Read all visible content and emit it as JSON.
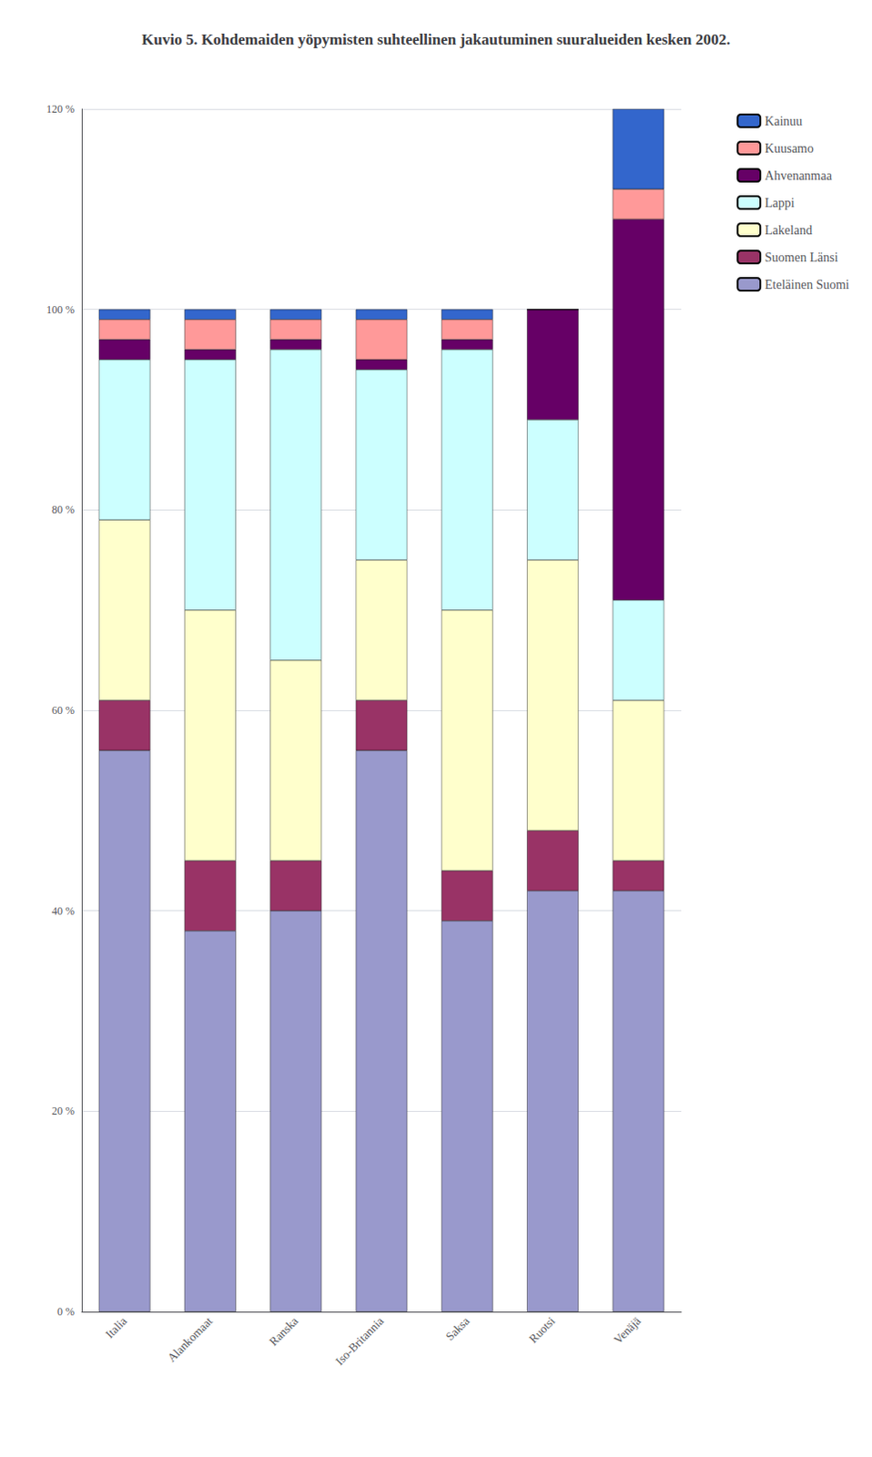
{
  "chart_data": {
    "type": "bar",
    "title": "Kuvio 5. Kohdemaiden yöpymisten suhteellinen jakautuminen suuralueiden kesken 2002.",
    "categories": [
      "Italia",
      "Alankomaat",
      "Ranska",
      "Iso-Britannia",
      "Saksa",
      "Ruotsi",
      "Venäjä"
    ],
    "series": [
      {
        "name": "Eteläinen Suomi",
        "color": "#9999cc",
        "values": [
          56,
          38,
          40,
          56,
          39,
          42,
          42
        ]
      },
      {
        "name": "Suomen Länsi",
        "color": "#993366",
        "values": [
          5,
          7,
          5,
          5,
          5,
          6,
          3
        ]
      },
      {
        "name": "Lakeland",
        "color": "#ffffcc",
        "values": [
          18,
          25,
          20,
          14,
          26,
          27,
          16
        ]
      },
      {
        "name": "Lappi",
        "color": "#ccffff",
        "values": [
          16,
          25,
          31,
          19,
          26,
          14,
          10
        ]
      },
      {
        "name": "Ahvenanmaa",
        "color": "#660066",
        "values": [
          2,
          1,
          1,
          1,
          1,
          11,
          38
        ]
      },
      {
        "name": "Kuusamo",
        "color": "#ff9999",
        "values": [
          2,
          3,
          2,
          4,
          2,
          0,
          3
        ]
      },
      {
        "name": "Kainuu",
        "color": "#3366cc",
        "values": [
          1,
          1,
          1,
          1,
          1,
          0,
          8
        ]
      }
    ],
    "stacked": true,
    "ylim": [
      0,
      120
    ],
    "yticks": [
      {
        "value": 0,
        "label": "0 %"
      },
      {
        "value": 20,
        "label": "20 %"
      },
      {
        "value": 40,
        "label": "40 %"
      },
      {
        "value": 60,
        "label": "60 %"
      },
      {
        "value": 80,
        "label": "80 %"
      },
      {
        "value": 100,
        "label": "100 %"
      },
      {
        "value": 120,
        "label": "120 %"
      }
    ],
    "grid": true,
    "legend": "upper right"
  }
}
